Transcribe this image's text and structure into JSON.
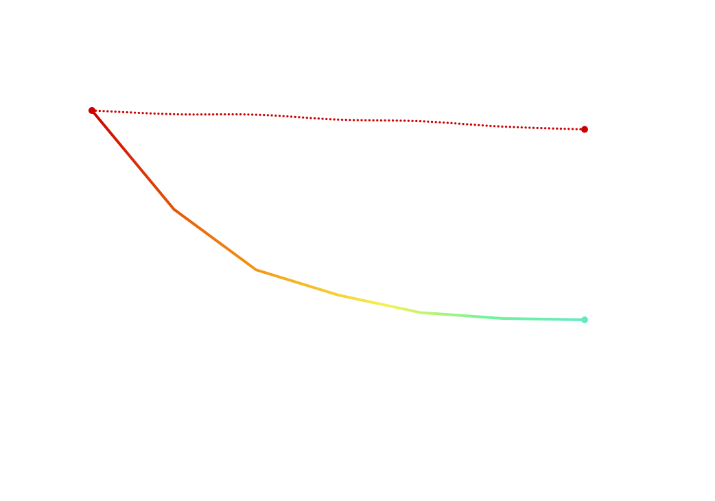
{
  "chart_data": {
    "type": "line",
    "title": "",
    "xlabel": "",
    "ylabel": "",
    "grid": false,
    "axes_visible": false,
    "legend": false,
    "x": [
      0,
      1,
      2,
      3,
      4,
      5,
      6
    ],
    "ylim": [
      0,
      100
    ],
    "series": [
      {
        "style": "dotted",
        "color": "#cc0000",
        "endpoint_markers": true,
        "values": [
          100,
          98.4,
          98.2,
          96.1,
          95.4,
          93.1,
          91.9
        ]
      },
      {
        "style": "solid-gradient",
        "color": "#cc0000",
        "gradient_colors": [
          "#cc0000",
          "#e8650a",
          "#f5b01e",
          "#f3f352",
          "#6ff59a",
          "#66e8c4"
        ],
        "endpoint_markers": true,
        "values": [
          100,
          57.6,
          31.7,
          20.9,
          13.4,
          10.9,
          10.3
        ]
      }
    ]
  }
}
